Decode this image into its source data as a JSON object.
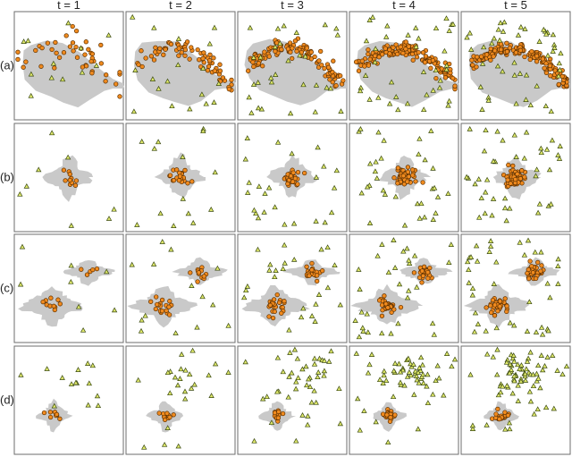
{
  "columns": [
    "t = 1",
    "t = 2",
    "t = 3",
    "t = 4",
    "t = 5"
  ],
  "rows": [
    "(a)",
    "(b)",
    "(c)",
    "(d)"
  ],
  "colors": {
    "region": "#c9c9c9",
    "sample_fill": "#f08a1e",
    "sample_stroke": "#5a2f00",
    "probe_fill": "#dfe86a",
    "probe_stroke": "#3b4a12",
    "frame": "#6d6d6d"
  },
  "marker_shapes": {
    "sample": "circle",
    "probe": "triangle"
  }
}
